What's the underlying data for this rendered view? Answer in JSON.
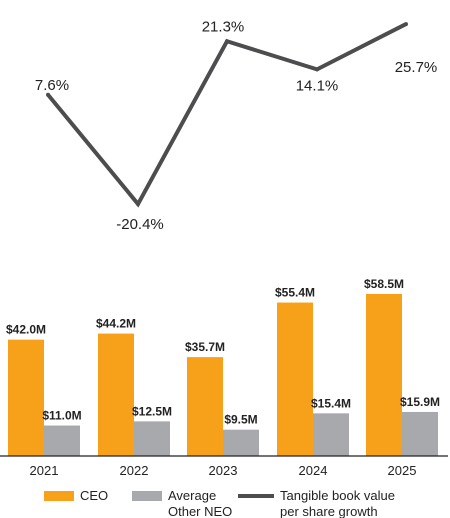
{
  "chart_data": {
    "type": "bar",
    "categories": [
      "2021",
      "2022",
      "2023",
      "2024",
      "2025"
    ],
    "series": [
      {
        "name": "CEO",
        "kind": "bar",
        "color": "#F7A11A",
        "values": [
          42.0,
          44.2,
          35.7,
          55.4,
          58.5
        ],
        "labels": [
          "$42.0M",
          "$44.2M",
          "$35.7M",
          "$55.4M",
          "$58.5M"
        ]
      },
      {
        "name": "Average Other NEO",
        "legend_lines": [
          "Average",
          "Other NEO"
        ],
        "kind": "bar",
        "color": "#A7A9AC",
        "values": [
          11.0,
          12.5,
          9.5,
          15.4,
          15.9
        ],
        "labels": [
          "$11.0M",
          "$12.5M",
          "$9.5M",
          "$15.4M",
          "$15.9M"
        ]
      },
      {
        "name": "Tangible book value per share growth",
        "legend_lines": [
          "Tangible book value",
          "per share growth"
        ],
        "kind": "line",
        "color": "#4D4D4F",
        "values": [
          7.6,
          -20.4,
          21.3,
          14.1,
          25.7
        ],
        "labels": [
          "7.6%",
          "-20.4%",
          "21.3%",
          "14.1%",
          "25.7%"
        ]
      }
    ],
    "bar_ylim": [
      0,
      75
    ],
    "line_ylim": [
      -25,
      27
    ],
    "grid": false,
    "legend_position": "bottom"
  }
}
